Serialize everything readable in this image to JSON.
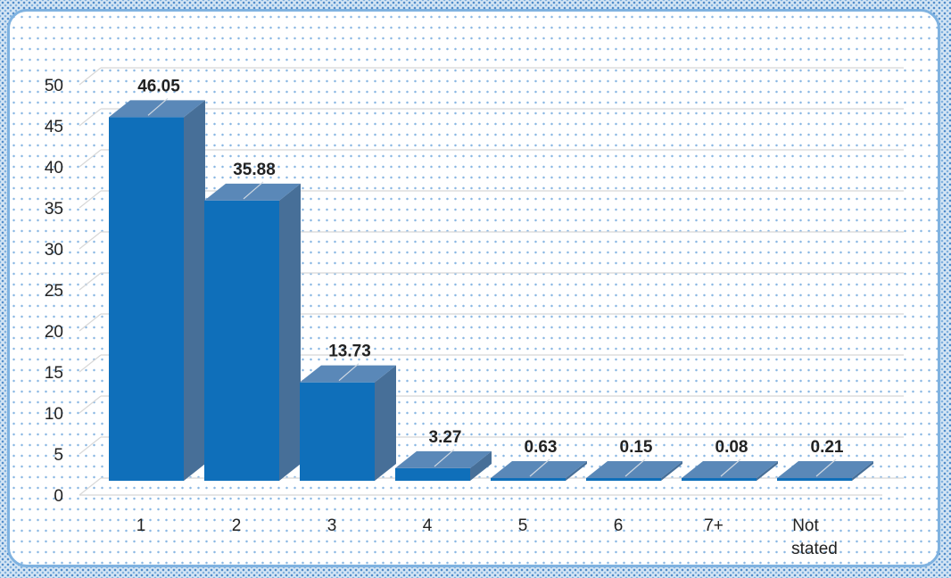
{
  "chart_data": {
    "type": "bar",
    "style": "3d-column",
    "categories": [
      "1",
      "2",
      "3",
      "4",
      "5",
      "6",
      "7+",
      "Not stated"
    ],
    "values": [
      46.05,
      35.88,
      13.73,
      3.27,
      0.63,
      0.15,
      0.08,
      0.21
    ],
    "data_labels": [
      "46.05",
      "35.88",
      "13.73",
      "3.27",
      "0.63",
      "0.15",
      "0.08",
      "0.21"
    ],
    "yticks": [
      "0",
      "5",
      "10",
      "15",
      "20",
      "25",
      "30",
      "35",
      "40",
      "45",
      "50"
    ],
    "ylim": [
      0,
      50
    ],
    "title": "",
    "xlabel": "",
    "ylabel": "",
    "grid": true,
    "legend": "none",
    "colors": {
      "bar_front": "#0f6fba",
      "bar_side": "#476f98",
      "bar_top": "#5a88b8",
      "grid": "#d8d8d8",
      "frame_border": "#7fb2e0"
    }
  }
}
